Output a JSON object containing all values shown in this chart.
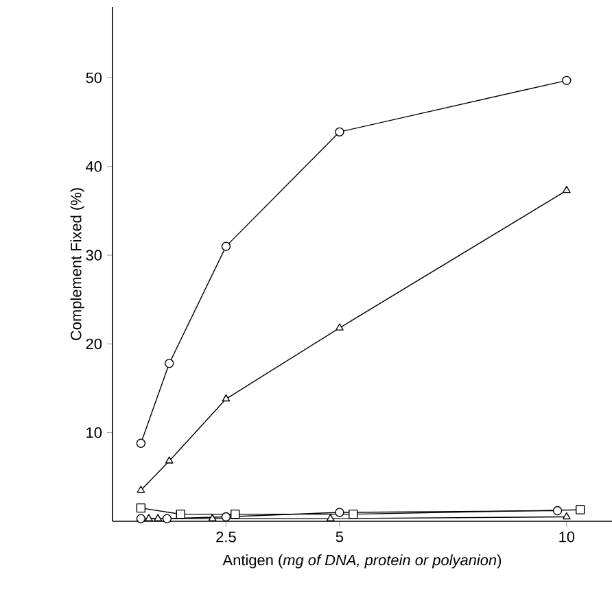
{
  "chart_data": {
    "type": "line",
    "xlabel": "Antigen (*mg of DNA, protein or polyanion*)",
    "ylabel": "Complement Fixed (%)",
    "xlim": [
      0,
      11
    ],
    "ylim": [
      0,
      58
    ],
    "xticks": [
      2.5,
      5,
      10
    ],
    "yticks": [
      10,
      20,
      30,
      40,
      50
    ],
    "grid": false,
    "line_style": "solid",
    "series": [
      {
        "color": "#000000",
        "marker": "circle",
        "x": [
          0.625,
          1.25,
          2.5,
          5,
          10
        ],
        "values": [
          8.8,
          17.8,
          31,
          43.9,
          49.7
        ]
      },
      {
        "color": "#000000",
        "marker": "triangle",
        "x": [
          0.625,
          1.25,
          2.5,
          5,
          10
        ],
        "values": [
          3.5,
          6.8,
          13.8,
          21.8,
          37.3
        ]
      },
      {
        "color": "#000000",
        "marker": "square",
        "x": [
          0.625,
          1.5,
          2.7,
          5.3,
          10.3
        ],
        "values": [
          1.5,
          0.8,
          0.8,
          0.8,
          1.3
        ]
      },
      {
        "color": "#000000",
        "marker": "circle",
        "x": [
          0.625,
          1.2,
          2.5,
          5,
          9.8
        ],
        "values": [
          0.3,
          0.3,
          0.5,
          1,
          1.2
        ]
      },
      {
        "color": "#000000",
        "marker": "triangle",
        "x": [
          0.8,
          1,
          2.2,
          4.8,
          10
        ],
        "values": [
          0.3,
          0.3,
          0.3,
          0.3,
          0.5
        ]
      }
    ]
  }
}
